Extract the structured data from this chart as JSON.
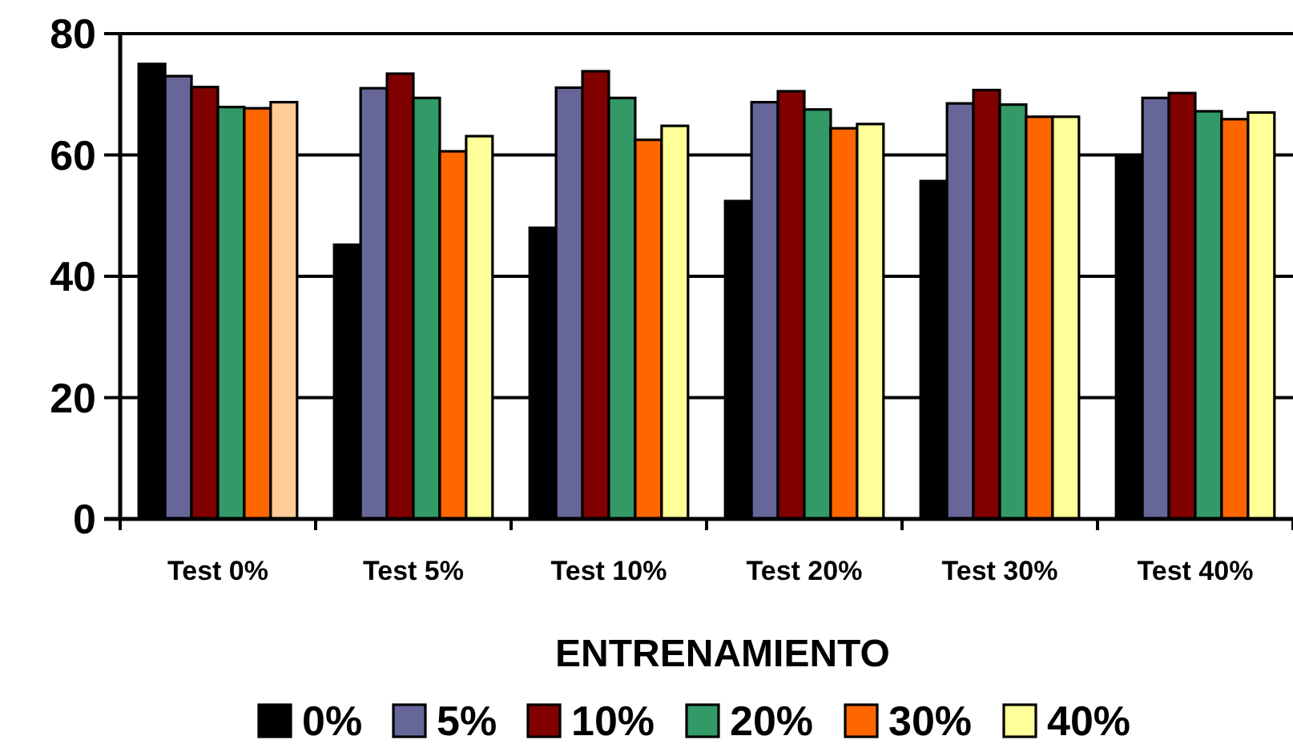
{
  "chart_data": {
    "type": "bar",
    "xlabel": "ENTRENAMIENTO",
    "categories": [
      "Test 0%",
      "Test 5%",
      "Test 10%",
      "Test 20%",
      "Test 30%",
      "Test 40%"
    ],
    "series": [
      {
        "name": "0%",
        "color": "#000000",
        "values": [
          75.0,
          45.2,
          48.0,
          52.4,
          55.7,
          60.0
        ]
      },
      {
        "name": "5%",
        "color": "#666699",
        "values": [
          73.0,
          71.0,
          71.1,
          68.7,
          68.5,
          69.4
        ]
      },
      {
        "name": "10%",
        "color": "#800000",
        "values": [
          71.2,
          73.4,
          73.8,
          70.5,
          70.7,
          70.2
        ]
      },
      {
        "name": "20%",
        "color": "#339966",
        "values": [
          67.9,
          69.4,
          69.4,
          67.5,
          68.3,
          67.2
        ]
      },
      {
        "name": "30%",
        "color": "#ff6600",
        "values": [
          67.7,
          60.6,
          62.5,
          64.4,
          66.3,
          65.9
        ]
      },
      {
        "name": "40%",
        "color": "#ffff99",
        "colors": [
          "#ffcc99",
          "#ffff99",
          "#ffff99",
          "#ffff99",
          "#ffff99",
          "#ffff99"
        ],
        "values": [
          68.7,
          63.1,
          64.8,
          65.1,
          66.3,
          67.0
        ]
      }
    ],
    "ylim": [
      0,
      80
    ],
    "yticks": [
      0,
      20,
      40,
      60,
      80
    ],
    "grid": "y",
    "legend": "bottom"
  }
}
